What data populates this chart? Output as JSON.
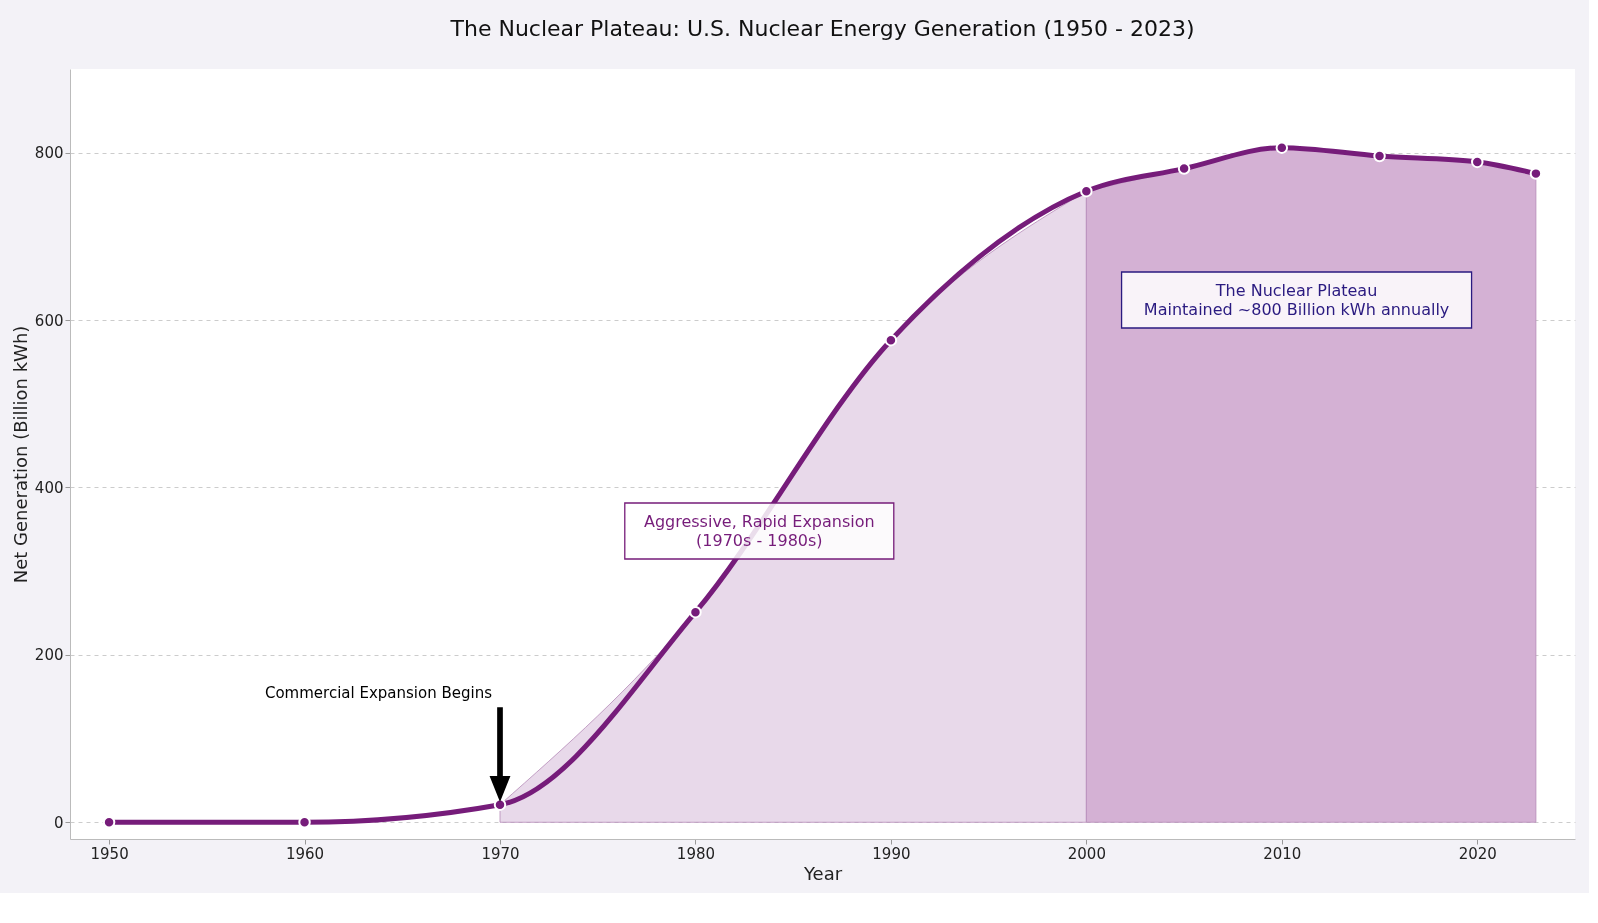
{
  "chart_data": {
    "type": "line",
    "title": "The Nuclear Plateau: U.S. Nuclear Energy Generation (1950 - 2023)",
    "xlabel": "Year",
    "ylabel": "Net Generation (Billion kWh)",
    "x": [
      1950,
      1960,
      1970,
      1980,
      1990,
      2000,
      2005,
      2010,
      2015,
      2020,
      2023
    ],
    "series": [
      {
        "color": "#761c7a",
        "values": [
          0,
          0,
          21,
          251,
          576,
          754,
          781,
          806,
          796,
          789,
          775
        ]
      },
      {
        "type": "area",
        "marker": "none",
        "color": "#e8d9ea",
        "x": [
          1970,
          1980,
          1990,
          2000
        ],
        "values": [
          21,
          251,
          576,
          754
        ]
      },
      {
        "type": "area",
        "marker": "none",
        "color": "#d4b1d4",
        "x": [
          2000,
          2005,
          2010,
          2015,
          2020,
          2023
        ],
        "values": [
          754,
          781,
          806,
          796,
          789,
          775
        ]
      }
    ],
    "xlim": [
      1948,
      2025
    ],
    "xticks": [
      1950,
      1960,
      1970,
      1980,
      1990,
      2000,
      2010,
      2020
    ],
    "ylim": [
      -20,
      900
    ],
    "yticks": [
      0,
      200,
      400,
      600,
      800
    ],
    "annotations": [
      "Commercial Expansion Begins",
      "Aggressive, Rapid Expansion\n(1970s - 1980s)",
      "The Nuclear Plateau\nMaintained ~800 Billion kWh annually"
    ],
    "grid": "y",
    "marker": "circle",
    "line_style": "solid"
  }
}
